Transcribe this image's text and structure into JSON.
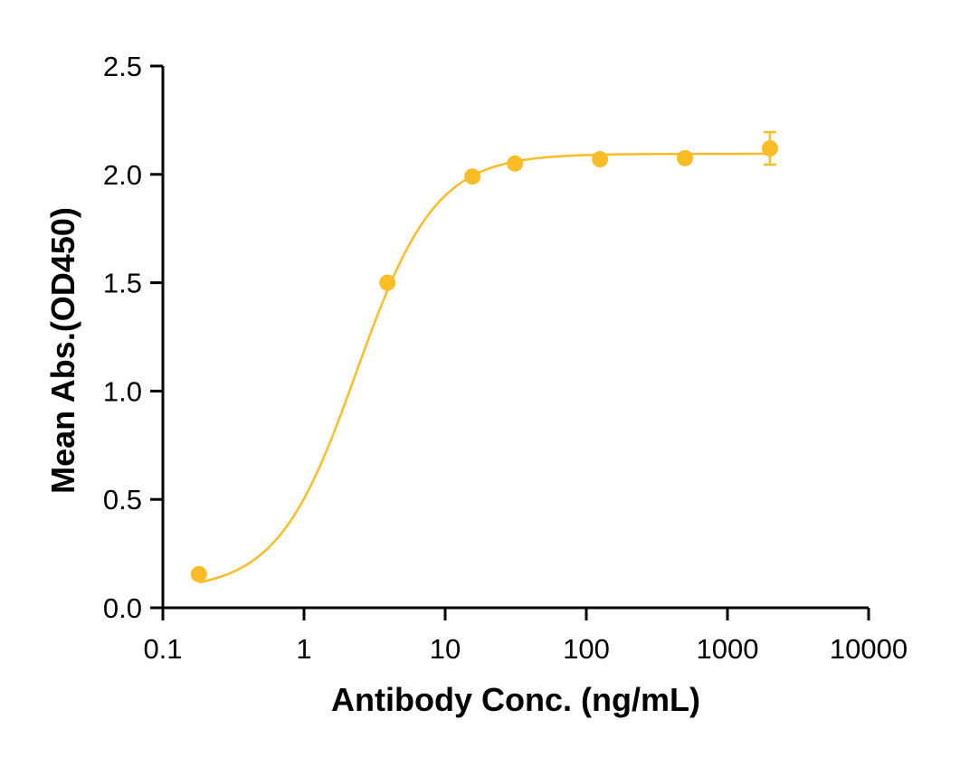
{
  "chart_data": {
    "type": "scatter",
    "title": "",
    "xlabel": "Antibody Conc. (ng/mL)",
    "ylabel": "Mean Abs.(OD450)",
    "x_scale": "log",
    "xlim": [
      0.1,
      10000
    ],
    "ylim": [
      0.0,
      2.5
    ],
    "x_ticks": [
      "0.1",
      "1",
      "10",
      "100",
      "1000",
      "10000"
    ],
    "x_tick_values": [
      0.1,
      1,
      10,
      100,
      1000,
      10000
    ],
    "y_ticks": [
      "0.0",
      "0.5",
      "1.0",
      "1.5",
      "2.0",
      "2.5"
    ],
    "y_tick_values": [
      0.0,
      0.5,
      1.0,
      1.5,
      2.0,
      2.5
    ],
    "grid": false,
    "legend": "none",
    "color": "#FBBC25",
    "series": [
      {
        "x": [
          0.18,
          3.9,
          15.6,
          31.25,
          125,
          500,
          2000
        ],
        "y": [
          0.155,
          1.5,
          1.99,
          2.05,
          2.07,
          2.075,
          2.12
        ],
        "error": [
          0.0,
          0.0,
          0.0,
          0.0,
          0.0,
          0.0,
          0.075
        ],
        "fit": {
          "model": "4PL",
          "bottom": 0.08,
          "top": 2.095,
          "ec50": 2.35,
          "hill": 1.55
        }
      }
    ]
  }
}
